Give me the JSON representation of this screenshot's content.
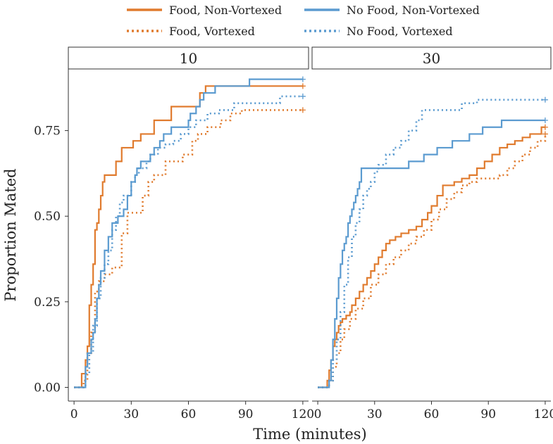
{
  "chart_data": {
    "type": "line",
    "step": true,
    "xlabel": "Time (minutes)",
    "ylabel": "Proportion Mated",
    "xlim": [
      -3,
      123
    ],
    "ylim": [
      -0.04,
      0.93
    ],
    "x_ticks": [
      0,
      30,
      60,
      90,
      120
    ],
    "y_ticks": [
      0.0,
      0.25,
      0.5,
      0.75
    ],
    "x_tick_labels": [
      "0",
      "30",
      "60",
      "90",
      "120"
    ],
    "y_tick_labels": [
      "0.00",
      "0.25",
      "0.50",
      "0.75"
    ],
    "legend": {
      "position": "top"
    },
    "series_styles": [
      {
        "name": "Food, Non-Vortexed",
        "color": "#E07B2E",
        "dash": "solid"
      },
      {
        "name": "Food, Vortexed",
        "color": "#E07B2E",
        "dash": "dotted"
      },
      {
        "name": "No Food, Non-Vortexed",
        "color": "#5B9BD0",
        "dash": "solid"
      },
      {
        "name": "No Food, Vortexed",
        "color": "#5B9BD0",
        "dash": "dotted"
      }
    ],
    "panels": [
      {
        "label": "10",
        "series": [
          {
            "name": "Food, Non-Vortexed",
            "x": [
              0,
              4,
              6,
              7,
              8,
              9,
              10,
              11,
              12,
              13,
              14,
              15,
              16,
              17,
              18,
              22,
              25,
              27,
              31,
              35,
              42,
              45,
              51,
              66,
              69,
              120
            ],
            "y": [
              0,
              0.04,
              0.08,
              0.12,
              0.24,
              0.3,
              0.36,
              0.46,
              0.48,
              0.52,
              0.56,
              0.6,
              0.62,
              0.62,
              0.62,
              0.66,
              0.7,
              0.7,
              0.72,
              0.74,
              0.78,
              0.78,
              0.82,
              0.86,
              0.88,
              0.88
            ]
          },
          {
            "name": "Food, Vortexed",
            "x": [
              0,
              5,
              7,
              9,
              11,
              13,
              16,
              20,
              25,
              28,
              30,
              36,
              39,
              42,
              48,
              57,
              62,
              65,
              70,
              72,
              77,
              82,
              88,
              120
            ],
            "y": [
              0,
              0.02,
              0.1,
              0.16,
              0.28,
              0.31,
              0.33,
              0.35,
              0.45,
              0.51,
              0.51,
              0.56,
              0.6,
              0.62,
              0.66,
              0.68,
              0.72,
              0.74,
              0.76,
              0.76,
              0.78,
              0.8,
              0.81,
              0.81
            ]
          },
          {
            "name": "No Food, Non-Vortexed",
            "x": [
              0,
              6,
              7,
              9,
              10,
              11,
              12,
              13,
              14,
              16,
              18,
              20,
              22,
              23,
              26,
              28,
              30,
              32,
              33,
              35,
              40,
              42,
              45,
              47,
              48,
              51,
              53,
              58,
              60,
              61,
              64,
              66,
              68,
              72,
              74,
              92,
              120
            ],
            "y": [
              0,
              0.06,
              0.1,
              0.14,
              0.16,
              0.2,
              0.26,
              0.3,
              0.34,
              0.4,
              0.44,
              0.48,
              0.48,
              0.5,
              0.52,
              0.56,
              0.6,
              0.62,
              0.64,
              0.66,
              0.68,
              0.7,
              0.72,
              0.74,
              0.74,
              0.76,
              0.76,
              0.76,
              0.78,
              0.8,
              0.82,
              0.84,
              0.86,
              0.86,
              0.88,
              0.9,
              0.9
            ]
          },
          {
            "name": "No Food, Vortexed",
            "x": [
              0,
              6,
              8,
              10,
              12,
              14,
              16,
              18,
              20,
              22,
              24,
              26,
              30,
              32,
              34,
              38,
              40,
              44,
              48,
              52,
              56,
              60,
              64,
              70,
              76,
              84,
              94,
              108,
              120
            ],
            "y": [
              0,
              0.04,
              0.1,
              0.18,
              0.26,
              0.32,
              0.36,
              0.4,
              0.46,
              0.5,
              0.54,
              0.56,
              0.6,
              0.62,
              0.64,
              0.66,
              0.68,
              0.7,
              0.71,
              0.72,
              0.74,
              0.76,
              0.78,
              0.8,
              0.81,
              0.83,
              0.83,
              0.85,
              0.85
            ]
          }
        ]
      },
      {
        "label": "30",
        "series": [
          {
            "name": "Food, Non-Vortexed",
            "x": [
              0,
              5,
              6,
              7,
              8,
              9,
              10,
              11,
              12,
              13,
              15,
              17,
              18,
              20,
              22,
              24,
              26,
              28,
              30,
              32,
              34,
              36,
              38,
              41,
              44,
              48,
              52,
              55,
              58,
              60,
              63,
              66,
              72,
              76,
              80,
              84,
              88,
              92,
              96,
              100,
              104,
              108,
              112,
              116,
              118,
              120
            ],
            "y": [
              0,
              0.02,
              0.05,
              0.08,
              0.12,
              0.14,
              0.16,
              0.18,
              0.19,
              0.2,
              0.21,
              0.22,
              0.24,
              0.26,
              0.28,
              0.3,
              0.32,
              0.34,
              0.36,
              0.38,
              0.4,
              0.42,
              0.43,
              0.44,
              0.45,
              0.46,
              0.47,
              0.49,
              0.51,
              0.53,
              0.56,
              0.59,
              0.6,
              0.61,
              0.62,
              0.64,
              0.66,
              0.68,
              0.7,
              0.71,
              0.72,
              0.73,
              0.74,
              0.74,
              0.76,
              0.76
            ]
          },
          {
            "name": "Food, Vortexed",
            "x": [
              0,
              6,
              8,
              10,
              12,
              14,
              17,
              20,
              24,
              28,
              32,
              36,
              40,
              44,
              48,
              52,
              56,
              60,
              64,
              68,
              72,
              76,
              80,
              84,
              88,
              92,
              96,
              100,
              104,
              108,
              112,
              116,
              120
            ],
            "y": [
              0,
              0.02,
              0.06,
              0.1,
              0.14,
              0.17,
              0.2,
              0.23,
              0.26,
              0.3,
              0.33,
              0.36,
              0.38,
              0.4,
              0.42,
              0.44,
              0.46,
              0.49,
              0.52,
              0.55,
              0.57,
              0.59,
              0.6,
              0.61,
              0.61,
              0.61,
              0.62,
              0.64,
              0.66,
              0.68,
              0.7,
              0.72,
              0.74
            ]
          },
          {
            "name": "No Food, Non-Vortexed",
            "x": [
              0,
              6,
              7,
              8,
              9,
              10,
              11,
              12,
              13,
              14,
              15,
              16,
              17,
              18,
              19,
              20,
              21,
              22,
              23,
              44,
              48,
              56,
              63,
              71,
              80,
              87,
              97,
              120
            ],
            "y": [
              0,
              0.02,
              0.08,
              0.14,
              0.2,
              0.26,
              0.32,
              0.36,
              0.4,
              0.42,
              0.44,
              0.48,
              0.5,
              0.52,
              0.54,
              0.56,
              0.58,
              0.6,
              0.64,
              0.64,
              0.66,
              0.68,
              0.7,
              0.72,
              0.74,
              0.76,
              0.78,
              0.78
            ]
          },
          {
            "name": "No Food, Vortexed",
            "x": [
              0,
              6,
              8,
              10,
              12,
              14,
              16,
              18,
              20,
              22,
              24,
              26,
              28,
              30,
              32,
              36,
              40,
              44,
              48,
              52,
              55,
              60,
              70,
              76,
              84,
              120
            ],
            "y": [
              0,
              0.02,
              0.08,
              0.14,
              0.22,
              0.3,
              0.38,
              0.44,
              0.48,
              0.52,
              0.56,
              0.58,
              0.6,
              0.63,
              0.65,
              0.68,
              0.7,
              0.72,
              0.75,
              0.78,
              0.81,
              0.81,
              0.81,
              0.83,
              0.84,
              0.84
            ]
          }
        ]
      }
    ]
  }
}
